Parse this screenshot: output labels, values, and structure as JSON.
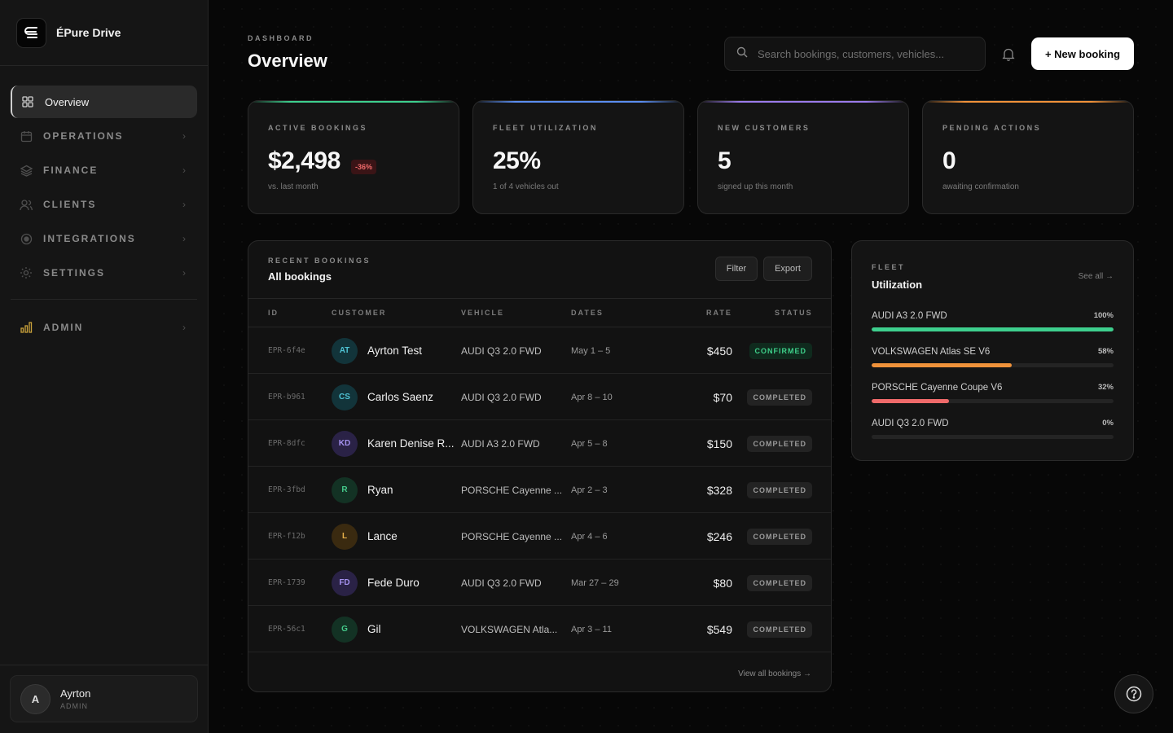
{
  "app": {
    "name": "ÉPure Drive"
  },
  "sidebar": {
    "items": [
      {
        "label": "Overview",
        "active": true,
        "icon": "grid-icon"
      },
      {
        "label": "OPERATIONS",
        "icon": "calendar-icon"
      },
      {
        "label": "FINANCE",
        "icon": "layers-icon"
      },
      {
        "label": "CLIENTS",
        "icon": "users-icon"
      },
      {
        "label": "INTEGRATIONS",
        "icon": "target-icon"
      },
      {
        "label": "SETTINGS",
        "icon": "gear-icon"
      }
    ],
    "admin": {
      "label": "ADMIN",
      "icon": "bar-chart-icon"
    },
    "user": {
      "initial": "A",
      "name": "Ayrton",
      "role": "ADMIN"
    }
  },
  "header": {
    "breadcrumb": "DASHBOARD",
    "title": "Overview",
    "search_placeholder": "Search bookings, customers, vehicles...",
    "new_booking_label": "+ New booking"
  },
  "stats": [
    {
      "label": "ACTIVE BOOKINGS",
      "value": "$2,498",
      "delta": "-36%",
      "sub": "vs. last month",
      "accent": "#3ecf8e"
    },
    {
      "label": "FLEET UTILIZATION",
      "value": "25%",
      "sub": "1 of 4 vehicles out",
      "accent": "#5b8def"
    },
    {
      "label": "NEW CUSTOMERS",
      "value": "5",
      "sub": "signed up this month",
      "accent": "#9b7bea"
    },
    {
      "label": "PENDING ACTIONS",
      "value": "0",
      "sub": "awaiting confirmation",
      "accent": "#f0923a"
    }
  ],
  "bookings": {
    "kicker": "RECENT BOOKINGS",
    "title": "All bookings",
    "filter_label": "Filter",
    "export_label": "Export",
    "columns": {
      "id": "ID",
      "customer": "CUSTOMER",
      "vehicle": "VEHICLE",
      "dates": "DATES",
      "rate": "RATE",
      "status": "STATUS"
    },
    "rows": [
      {
        "id": "EPR-6f4e",
        "initials": "AT",
        "name": "Ayrton Test",
        "vehicle": "AUDI Q3 2.0 FWD",
        "dates": "May 1 – 5",
        "rate": "$450",
        "status": "CONFIRMED",
        "avatar_bg": "#12343a",
        "avatar_fg": "#4fc3d4"
      },
      {
        "id": "EPR-b961",
        "initials": "CS",
        "name": "Carlos Saenz",
        "vehicle": "AUDI Q3 2.0 FWD",
        "dates": "Apr 8 – 10",
        "rate": "$70",
        "status": "COMPLETED",
        "avatar_bg": "#12343a",
        "avatar_fg": "#4fc3d4"
      },
      {
        "id": "EPR-8dfc",
        "initials": "KD",
        "name": "Karen Denise R...",
        "vehicle": "AUDI A3 2.0 FWD",
        "dates": "Apr 5 – 8",
        "rate": "$150",
        "status": "COMPLETED",
        "avatar_bg": "#2a2246",
        "avatar_fg": "#a592f0"
      },
      {
        "id": "EPR-3fbd",
        "initials": "R",
        "name": "Ryan",
        "vehicle": "PORSCHE Cayenne ...",
        "dates": "Apr 2 – 3",
        "rate": "$328",
        "status": "COMPLETED",
        "avatar_bg": "#133224",
        "avatar_fg": "#45c98a"
      },
      {
        "id": "EPR-f12b",
        "initials": "L",
        "name": "Lance",
        "vehicle": "PORSCHE Cayenne ...",
        "dates": "Apr 4 – 6",
        "rate": "$246",
        "status": "COMPLETED",
        "avatar_bg": "#3a2a10",
        "avatar_fg": "#e7b04a"
      },
      {
        "id": "EPR-1739",
        "initials": "FD",
        "name": "Fede Duro",
        "vehicle": "AUDI Q3 2.0 FWD",
        "dates": "Mar 27 – 29",
        "rate": "$80",
        "status": "COMPLETED",
        "avatar_bg": "#2a2246",
        "avatar_fg": "#a592f0"
      },
      {
        "id": "EPR-56c1",
        "initials": "G",
        "name": "Gil",
        "vehicle": "VOLKSWAGEN Atla...",
        "dates": "Apr 3 – 11",
        "rate": "$549",
        "status": "COMPLETED",
        "avatar_bg": "#133224",
        "avatar_fg": "#45c98a"
      }
    ],
    "view_all": "View all bookings →"
  },
  "fleet": {
    "kicker": "FLEET",
    "title": "Utilization",
    "see_all": "See all →",
    "items": [
      {
        "name": "AUDI A3 2.0 FWD",
        "pct_label": "100%",
        "pct": 1.0,
        "color": "#3ecf8e"
      },
      {
        "name": "VOLKSWAGEN Atlas SE V6",
        "pct_label": "58%",
        "pct": 0.58,
        "color": "#f0923a"
      },
      {
        "name": "PORSCHE Cayenne Coupe V6",
        "pct_label": "32%",
        "pct": 0.32,
        "color": "#ef6a6a"
      },
      {
        "name": "AUDI Q3 2.0 FWD",
        "pct_label": "0%",
        "pct": 0.0,
        "color": "#5b8def"
      }
    ]
  }
}
